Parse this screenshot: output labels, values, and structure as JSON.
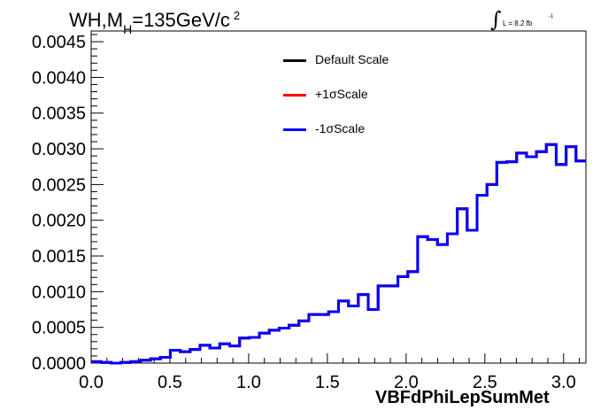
{
  "title": {
    "main": "WH,M",
    "subscript": "H",
    "rest": "=135GeV/c",
    "superscript": "2"
  },
  "luminosity": {
    "symbol": "∫",
    "text": "L = 8.2 fb",
    "superscript": "-1"
  },
  "legend": [
    {
      "label": "Default Scale",
      "color": "#000000"
    },
    {
      "label": "+1σScale",
      "color": "#ff0000"
    },
    {
      "label": "-1σScale",
      "color": "#0000ff"
    }
  ],
  "chart_data": {
    "type": "line",
    "style": "step-histogram",
    "xlabel": "VBFdPhiLepSumMet",
    "ylabel": "",
    "xlim": [
      0,
      3.1416
    ],
    "ylim": [
      0,
      0.00465
    ],
    "x_ticks": [
      "0.0",
      "0.5",
      "1.0",
      "1.5",
      "2.0",
      "2.5",
      "3.0"
    ],
    "x_tick_values": [
      0,
      0.5,
      1.0,
      1.5,
      2.0,
      2.5,
      3.0
    ],
    "y_ticks": [
      "0.0000",
      "0.0005",
      "0.0010",
      "0.0015",
      "0.0020",
      "0.0025",
      "0.0030",
      "0.0035",
      "0.0040",
      "0.0045"
    ],
    "y_tick_values": [
      0,
      0.0005,
      0.001,
      0.0015,
      0.002,
      0.0025,
      0.003,
      0.0035,
      0.004,
      0.0045
    ],
    "bin_edges_range": [
      0,
      3.1416
    ],
    "n_bins": 50,
    "series": [
      {
        "name": "Default Scale",
        "color": "#000000",
        "values": [
          2e-05,
          1e-05,
          0.0,
          1e-05,
          2e-05,
          4e-05,
          6e-05,
          8e-05,
          0.00018,
          0.00016,
          0.00019,
          0.00025,
          0.00021,
          0.00027,
          0.00024,
          0.00035,
          0.00036,
          0.00042,
          0.00046,
          0.00049,
          0.00053,
          0.00059,
          0.00068,
          0.00068,
          0.00072,
          0.00087,
          0.0008,
          0.00096,
          0.00075,
          0.00108,
          0.00108,
          0.00121,
          0.00128,
          0.00177,
          0.00173,
          0.00166,
          0.00181,
          0.00216,
          0.00186,
          0.00235,
          0.0025,
          0.00281,
          0.00282,
          0.00294,
          0.00289,
          0.00296,
          0.00306,
          0.00278,
          0.00303,
          0.00283
        ]
      },
      {
        "name": "+1σScale",
        "color": "#ff0000",
        "values": [
          2e-05,
          1e-05,
          0.0,
          1e-05,
          2e-05,
          4e-05,
          6e-05,
          8e-05,
          0.00018,
          0.00016,
          0.00019,
          0.00025,
          0.00021,
          0.00027,
          0.00024,
          0.00035,
          0.00036,
          0.00042,
          0.00046,
          0.00049,
          0.00053,
          0.00059,
          0.00068,
          0.00068,
          0.00072,
          0.00087,
          0.0008,
          0.00096,
          0.00075,
          0.00108,
          0.00108,
          0.00121,
          0.00128,
          0.00177,
          0.00173,
          0.00166,
          0.00181,
          0.00216,
          0.00186,
          0.00235,
          0.0025,
          0.00281,
          0.00282,
          0.00294,
          0.00289,
          0.00296,
          0.00306,
          0.00278,
          0.00303,
          0.00283
        ]
      },
      {
        "name": "-1σScale",
        "color": "#0000ff",
        "values": [
          2e-05,
          1e-05,
          0.0,
          1e-05,
          2e-05,
          4e-05,
          6e-05,
          8e-05,
          0.00018,
          0.00016,
          0.00019,
          0.00025,
          0.00021,
          0.00027,
          0.00024,
          0.00035,
          0.00036,
          0.00042,
          0.00046,
          0.00049,
          0.00053,
          0.00059,
          0.00068,
          0.00068,
          0.00072,
          0.00087,
          0.0008,
          0.00096,
          0.00075,
          0.00108,
          0.00108,
          0.00121,
          0.00128,
          0.00177,
          0.00173,
          0.00166,
          0.00181,
          0.00216,
          0.00186,
          0.00235,
          0.0025,
          0.00281,
          0.00282,
          0.00294,
          0.00289,
          0.00296,
          0.00306,
          0.00278,
          0.00303,
          0.00283
        ]
      }
    ],
    "grid": false,
    "legend_position": "top-center"
  }
}
